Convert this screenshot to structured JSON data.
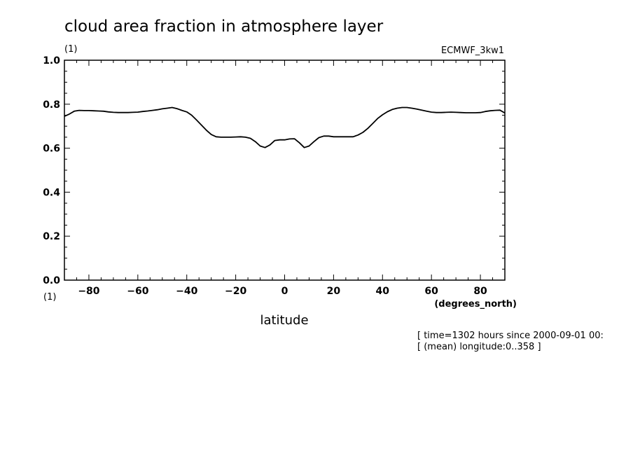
{
  "chart_data": {
    "type": "line",
    "title": "cloud area fraction in atmosphere layer",
    "y_units": "(1)",
    "x_units_left": "(1)",
    "dataset": "ECMWF_3kw1",
    "xlabel": "latitude",
    "x_units": "(degrees_north)",
    "xlim": [
      -90,
      90
    ],
    "ylim": [
      0.0,
      1.0
    ],
    "x_ticks": [
      -80,
      -60,
      -40,
      -20,
      0,
      20,
      40,
      60,
      80
    ],
    "x_tick_labels": [
      "-80",
      "-60",
      "-40",
      "-20",
      "0",
      "20",
      "40",
      "60",
      "80"
    ],
    "y_ticks": [
      0.0,
      0.2,
      0.4,
      0.6,
      0.8,
      1.0
    ],
    "y_tick_labels": [
      "0.0",
      "0.2",
      "0.4",
      "0.6",
      "0.8",
      "1.0"
    ],
    "grid": false,
    "annotations": [
      "[ time=1302 hours since 2000-09-01 00:",
      "[ (mean) longitude:0..358 ]"
    ],
    "series": [
      {
        "x": [
          -90,
          -88,
          -86,
          -84,
          -82,
          -80,
          -78,
          -76,
          -74,
          -72,
          -70,
          -68,
          -66,
          -64,
          -62,
          -60,
          -58,
          -56,
          -54,
          -52,
          -50,
          -48,
          -46,
          -44,
          -42,
          -40,
          -38,
          -36,
          -34,
          -32,
          -30,
          -28,
          -26,
          -24,
          -22,
          -20,
          -18,
          -16,
          -14,
          -12,
          -10,
          -8,
          -6,
          -4,
          -2,
          0,
          2,
          4,
          6,
          8,
          10,
          12,
          14,
          16,
          18,
          20,
          22,
          24,
          26,
          28,
          30,
          32,
          34,
          36,
          38,
          40,
          42,
          44,
          46,
          48,
          50,
          52,
          54,
          56,
          58,
          60,
          62,
          64,
          66,
          68,
          70,
          72,
          74,
          76,
          78,
          80,
          82,
          84,
          86,
          88,
          90
        ],
        "values": [
          0.745,
          0.755,
          0.768,
          0.772,
          0.771,
          0.771,
          0.77,
          0.769,
          0.768,
          0.765,
          0.763,
          0.762,
          0.762,
          0.762,
          0.763,
          0.764,
          0.767,
          0.769,
          0.772,
          0.775,
          0.779,
          0.782,
          0.785,
          0.78,
          0.772,
          0.765,
          0.75,
          0.728,
          0.705,
          0.682,
          0.662,
          0.652,
          0.65,
          0.65,
          0.65,
          0.651,
          0.652,
          0.65,
          0.645,
          0.63,
          0.61,
          0.603,
          0.615,
          0.635,
          0.638,
          0.638,
          0.642,
          0.643,
          0.625,
          0.603,
          0.61,
          0.63,
          0.648,
          0.655,
          0.655,
          0.652,
          0.652,
          0.652,
          0.652,
          0.652,
          0.66,
          0.672,
          0.69,
          0.712,
          0.735,
          0.752,
          0.766,
          0.776,
          0.782,
          0.785,
          0.785,
          0.782,
          0.778,
          0.773,
          0.768,
          0.764,
          0.762,
          0.762,
          0.763,
          0.764,
          0.763,
          0.762,
          0.761,
          0.761,
          0.761,
          0.762,
          0.767,
          0.77,
          0.772,
          0.773,
          0.76
        ]
      }
    ]
  }
}
